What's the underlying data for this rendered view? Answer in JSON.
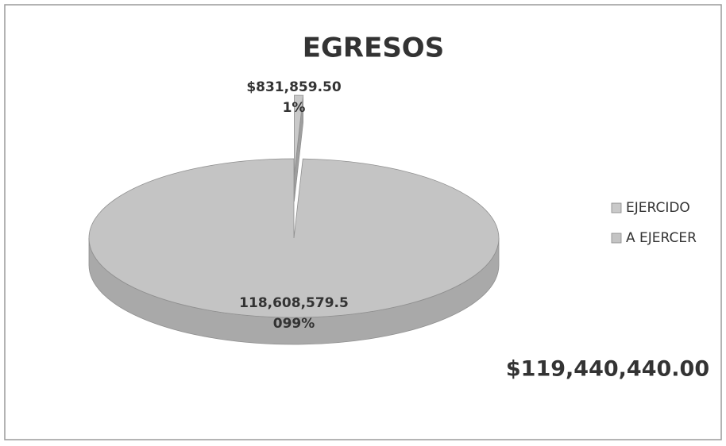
{
  "chart_data": {
    "type": "pie3d",
    "title": "EGRESOS",
    "categories": [
      "EJERCIDO",
      "A EJERCER"
    ],
    "values": [
      831859.5,
      118608579.5
    ],
    "value_labels": [
      "$831,859.50",
      "118,608,579.5"
    ],
    "percents": [
      1,
      99
    ],
    "percent_labels": [
      "1%",
      "099%"
    ],
    "colors": [
      "#c9c9c9",
      "#c4c4c4"
    ],
    "exploded": [
      true,
      false
    ],
    "legend": "right",
    "annotation": "$119,440,440.00"
  }
}
